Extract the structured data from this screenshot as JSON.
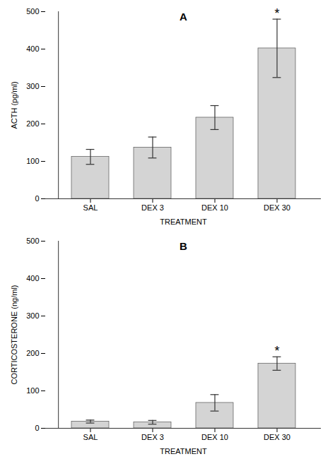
{
  "chart_data": [
    {
      "type": "bar",
      "title": "A",
      "categories": [
        "SAL",
        "DEX 3",
        "DEX 10",
        "DEX 30"
      ],
      "values": [
        112,
        137,
        217,
        402
      ],
      "errors": [
        20,
        28,
        32,
        78
      ],
      "xlabel": "TREATMENT",
      "ylabel": "ACTH (pg/ml)",
      "ylim": [
        0,
        500
      ],
      "yticks": [
        0,
        100,
        200,
        300,
        400,
        500
      ],
      "color": "#d4d4d4",
      "annotations": [
        {
          "text": "*",
          "x": "DEX 30"
        }
      ]
    },
    {
      "type": "bar",
      "title": "B",
      "categories": [
        "SAL",
        "DEX 3",
        "DEX 10",
        "DEX 30"
      ],
      "values": [
        18,
        16,
        68,
        173
      ],
      "errors": [
        4,
        5,
        22,
        18
      ],
      "xlabel": "TREATMENT",
      "ylabel": "CORTICOSTERONE (ng/ml)",
      "ylim": [
        0,
        500
      ],
      "yticks": [
        0,
        100,
        200,
        300,
        400,
        500
      ],
      "color": "#d4d4d4",
      "annotations": [
        {
          "text": "*",
          "x": "DEX 30"
        }
      ]
    }
  ]
}
